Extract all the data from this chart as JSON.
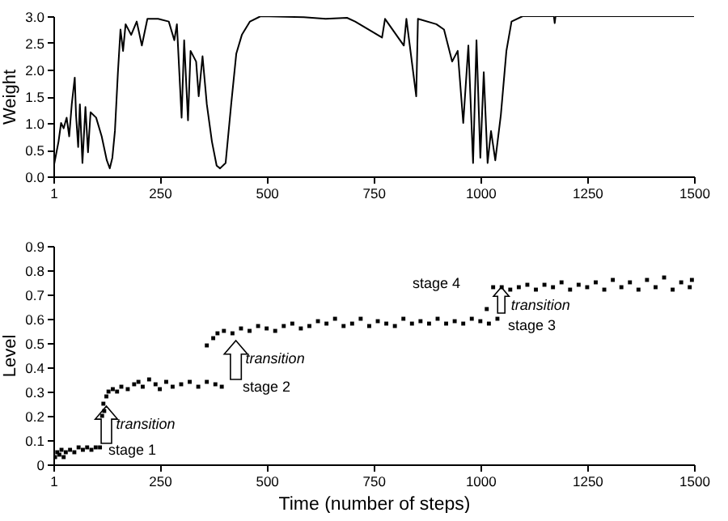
{
  "chart_data": [
    {
      "type": "line",
      "ylabel": "Weight",
      "xlim": [
        1,
        1500
      ],
      "xticks": [
        1,
        250,
        500,
        750,
        1000,
        1250,
        1500
      ],
      "ylim": [
        0,
        3
      ],
      "yticks": [
        {
          "value": 0,
          "label": "0.0"
        },
        {
          "value": 0.5,
          "label": "0.5"
        },
        {
          "value": 1,
          "label": "1.0"
        },
        {
          "value": 1.5,
          "label": "1.5"
        },
        {
          "value": 2,
          "label": "2.0"
        },
        {
          "value": 2.5,
          "label": "2.5"
        },
        {
          "value": 3,
          "label": "3.0"
        }
      ],
      "marker": "none",
      "line_style": "solid",
      "grid": false,
      "series": [
        {
          "color": "#000000",
          "x": [
            1,
            13,
            19,
            25,
            32,
            38,
            44,
            51,
            54,
            59,
            63,
            69,
            76,
            82,
            88,
            101,
            114,
            126,
            133,
            139,
            145,
            152,
            158,
            164,
            170,
            183,
            196,
            208,
            221,
            246,
            271,
            284,
            290,
            301,
            307,
            316,
            322,
            335,
            341,
            350,
            360,
            372,
            383,
            391,
            404,
            417,
            429,
            442,
            461,
            486,
            587,
            638,
            688,
            707,
            770,
            777,
            821,
            827,
            850,
            854,
            897,
            915,
            934,
            947,
            960,
            972,
            983,
            991,
            1000,
            1008,
            1017,
            1025,
            1035,
            1048,
            1061,
            1073,
            1099,
            1172,
            1174,
            1176,
            1250,
            1500
          ],
          "values": [
            0.15,
            0.65,
            1.0,
            0.9,
            1.1,
            0.75,
            1.35,
            1.85,
            1.15,
            0.55,
            1.35,
            0.25,
            1.3,
            0.45,
            1.2,
            1.1,
            0.75,
            0.3,
            0.15,
            0.35,
            0.85,
            1.95,
            2.75,
            2.35,
            2.85,
            2.65,
            2.9,
            2.45,
            2.95,
            2.95,
            2.9,
            2.55,
            2.85,
            1.1,
            2.55,
            1.05,
            2.35,
            2.15,
            1.5,
            2.25,
            1.35,
            0.65,
            0.2,
            0.15,
            0.25,
            1.35,
            2.3,
            2.65,
            2.9,
            3.0,
            2.98,
            2.95,
            2.97,
            2.9,
            2.6,
            2.95,
            2.45,
            2.95,
            1.5,
            2.95,
            2.85,
            2.75,
            2.15,
            2.35,
            1.0,
            2.45,
            0.25,
            2.55,
            0.35,
            1.95,
            0.25,
            0.85,
            0.3,
            1.15,
            2.35,
            2.9,
            3.0,
            3.0,
            2.87,
            3.0,
            3.0,
            3.0
          ]
        }
      ]
    },
    {
      "type": "scatter",
      "ylabel": "Level",
      "xlabel": "Time (number of steps)",
      "xlim": [
        1,
        1500
      ],
      "xticks": [
        1,
        250,
        500,
        750,
        1000,
        1250,
        1500
      ],
      "ylim": [
        0,
        0.9
      ],
      "yticks": [
        0,
        0.1,
        0.2,
        0.3,
        0.4,
        0.5,
        0.6,
        0.7,
        0.8,
        0.9
      ],
      "marker": "square",
      "grid": false,
      "annotations": [
        "stage 1",
        {
          "text": "transition",
          "x": 125,
          "y": 0.24
        },
        "stage 2",
        {
          "text": "transition",
          "x": 428,
          "y": 0.51
        },
        "stage 3",
        {
          "text": "transition",
          "x": 1049,
          "y": 0.73
        },
        "stage 4"
      ],
      "series": [
        {
          "color": "#000000",
          "x": [
            5,
            10,
            15,
            20,
            25,
            30,
            40,
            50,
            60,
            70,
            80,
            90,
            100,
            110,
            115,
            118,
            120,
            125,
            130,
            140,
            150,
            160,
            175,
            190,
            200,
            210,
            225,
            240,
            250,
            265,
            280,
            300,
            320,
            340,
            360,
            380,
            395,
            360,
            375,
            385,
            400,
            420,
            440,
            460,
            480,
            500,
            520,
            540,
            560,
            580,
            600,
            620,
            640,
            660,
            680,
            700,
            720,
            740,
            760,
            780,
            800,
            820,
            840,
            860,
            880,
            900,
            920,
            940,
            960,
            980,
            1000,
            1020,
            1040,
            1015,
            1030,
            1050,
            1070,
            1090,
            1110,
            1130,
            1150,
            1170,
            1190,
            1210,
            1230,
            1250,
            1270,
            1290,
            1310,
            1330,
            1350,
            1370,
            1390,
            1410,
            1430,
            1450,
            1470,
            1490,
            1495
          ],
          "values": [
            0.03,
            0.05,
            0.04,
            0.06,
            0.03,
            0.05,
            0.06,
            0.05,
            0.07,
            0.06,
            0.07,
            0.06,
            0.07,
            0.07,
            0.2,
            0.25,
            0.22,
            0.28,
            0.3,
            0.31,
            0.3,
            0.32,
            0.31,
            0.33,
            0.34,
            0.32,
            0.35,
            0.33,
            0.31,
            0.34,
            0.32,
            0.33,
            0.34,
            0.32,
            0.34,
            0.33,
            0.32,
            0.49,
            0.52,
            0.54,
            0.55,
            0.54,
            0.56,
            0.55,
            0.57,
            0.56,
            0.55,
            0.57,
            0.58,
            0.56,
            0.57,
            0.59,
            0.58,
            0.6,
            0.57,
            0.58,
            0.6,
            0.57,
            0.59,
            0.58,
            0.57,
            0.6,
            0.58,
            0.59,
            0.58,
            0.6,
            0.58,
            0.59,
            0.58,
            0.6,
            0.59,
            0.58,
            0.6,
            0.64,
            0.73,
            0.73,
            0.72,
            0.73,
            0.74,
            0.72,
            0.74,
            0.73,
            0.75,
            0.72,
            0.74,
            0.73,
            0.75,
            0.72,
            0.76,
            0.73,
            0.75,
            0.72,
            0.76,
            0.73,
            0.77,
            0.72,
            0.75,
            0.73,
            0.76
          ]
        }
      ]
    }
  ]
}
